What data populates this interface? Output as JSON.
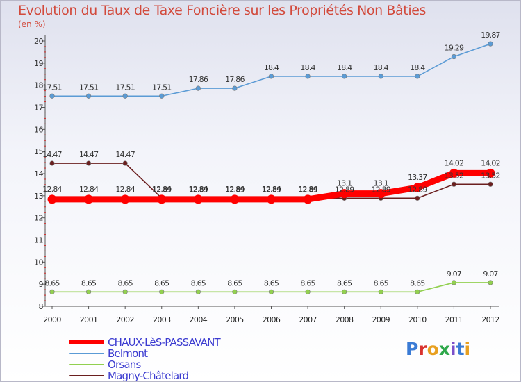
{
  "page": {
    "title": "Evolution du Taux de Taxe Foncière sur les Propriétés Non Bâties",
    "unit": "(en %)",
    "logo": "Proxiti"
  },
  "chart_data": {
    "type": "line",
    "title": "Evolution du Taux de Taxe Foncière sur les Propriétés Non Bâties",
    "ylabel": "(en %)",
    "xlabel": "",
    "x": [
      "2000",
      "2001",
      "2002",
      "2003",
      "2004",
      "2005",
      "2006",
      "2007",
      "2008",
      "2009",
      "2010",
      "2011",
      "2012"
    ],
    "ylim": [
      8,
      20
    ],
    "yticks": [
      8,
      9,
      10,
      11,
      12,
      13,
      14,
      15,
      16,
      17,
      18,
      19,
      20
    ],
    "grid": false,
    "legend": "bottom-left",
    "series": [
      {
        "name": "CHAUX-LèS-PASSAVANT",
        "color": "#ff0000",
        "highlight": true,
        "values": [
          12.84,
          12.84,
          12.84,
          12.84,
          12.84,
          12.84,
          12.84,
          12.84,
          13.1,
          13.1,
          13.37,
          14.02,
          14.02
        ],
        "labels": [
          "12.84",
          "12.84",
          "12.84",
          "12.84",
          "12.84",
          "12.84",
          "12.84",
          "12.84",
          "13.1",
          "13.1",
          "13.37",
          "14.02",
          "14.02"
        ]
      },
      {
        "name": "Belmont",
        "color": "#5b9bd5",
        "values": [
          17.51,
          17.51,
          17.51,
          17.51,
          17.86,
          17.86,
          18.4,
          18.4,
          18.4,
          18.4,
          18.4,
          19.29,
          19.87
        ],
        "labels": [
          "17.51",
          "17.51",
          "17.51",
          "17.51",
          "17.86",
          "17.86",
          "18.4",
          "18.4",
          "18.4",
          "18.4",
          "18.4",
          "19.29",
          "19.87"
        ]
      },
      {
        "name": "Orsans",
        "color": "#92d050",
        "values": [
          8.65,
          8.65,
          8.65,
          8.65,
          8.65,
          8.65,
          8.65,
          8.65,
          8.65,
          8.65,
          8.65,
          9.07,
          9.07
        ],
        "labels": [
          "8.65",
          "8.65",
          "8.65",
          "8.65",
          "8.65",
          "8.65",
          "8.65",
          "8.65",
          "8.65",
          "8.65",
          "8.65",
          "9.07",
          "9.07"
        ]
      },
      {
        "name": "Magny-Châtelard",
        "color": "#6b1f1f",
        "values": [
          14.47,
          14.47,
          14.47,
          12.89,
          12.89,
          12.89,
          12.89,
          12.89,
          12.89,
          12.89,
          12.89,
          13.52,
          13.52
        ],
        "labels": [
          "14.47",
          "14.47",
          "14.47",
          "12.89",
          "12.89",
          "12.89",
          "12.89",
          "12.89",
          "12.89",
          "12.89",
          "12.89",
          "13.52",
          "13.52"
        ]
      }
    ]
  }
}
